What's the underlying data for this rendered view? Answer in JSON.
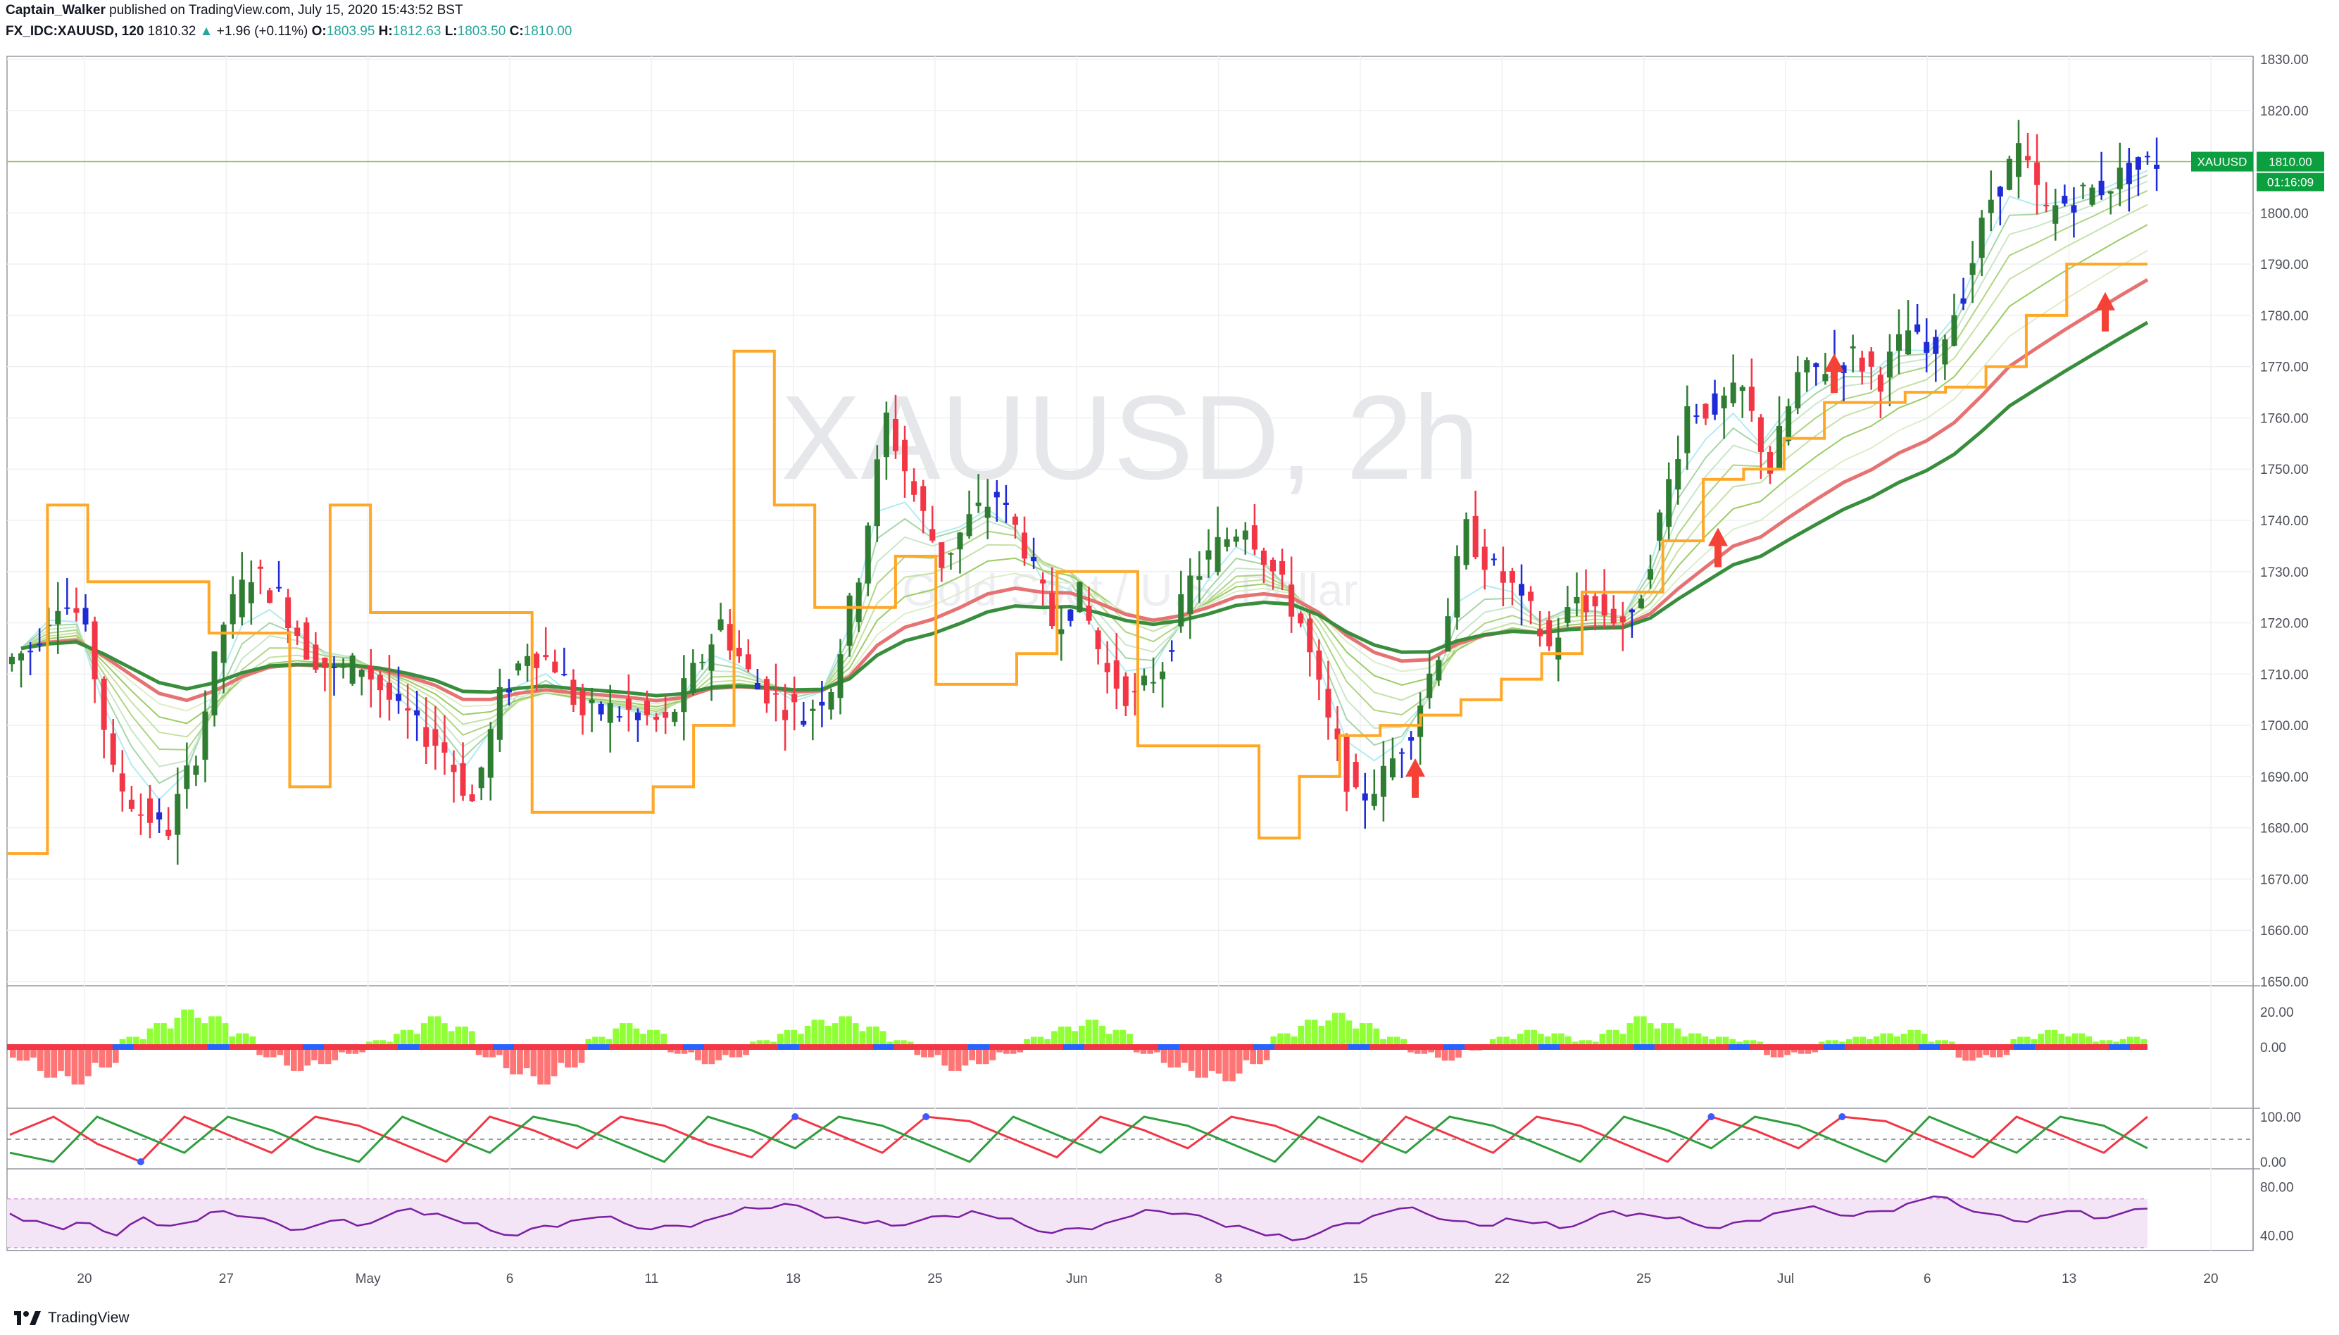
{
  "header": {
    "author": "Captain_Walker",
    "published_text": "published on TradingView.com, July 15, 2020 15:43:52 BST",
    "symbol_line": "FX_IDC:XAUUSD, 120",
    "last": "1810.32",
    "change": "+1.96 (+0.11%)",
    "open_label": "O:",
    "open": "1803.95",
    "high_label": "H:",
    "high": "1812.63",
    "low_label": "L:",
    "low": "1803.50",
    "close_label": "C:",
    "close": "1810.00"
  },
  "watermark": {
    "title": "XAUUSD, 2h",
    "subtitle": "Gold Spot / U.S. Dollar"
  },
  "price_tag": {
    "symbol": "XAUUSD",
    "price": "1810.00",
    "countdown": "01:16:09"
  },
  "footer": {
    "brand": "TradingView"
  },
  "colors": {
    "up": "#2e7d32",
    "down": "#f23645",
    "neutral_up": "#1f2bd6",
    "support": "#ffa726",
    "ribbon_fast": "#80deea",
    "ribbon_slow": "#4caf50",
    "rsi_band": "#f3e5f5",
    "rsi_line": "#7b1fa2",
    "accent": "#0c9f3f"
  },
  "chart_data": [
    {
      "type": "candlestick",
      "pane": "price",
      "ylim": [
        1650,
        1830
      ],
      "y_ticks": [
        "1830.00",
        "1820.00",
        "1810.00",
        "1800.00",
        "1790.00",
        "1780.00",
        "1770.00",
        "1760.00",
        "1750.00",
        "1740.00",
        "1730.00",
        "1720.00",
        "1710.00",
        "1700.00",
        "1690.00",
        "1680.00",
        "1670.00",
        "1660.00",
        "1650.00"
      ],
      "x_ticks": [
        "20",
        "27",
        "May",
        "6",
        "11",
        "18",
        "25",
        "Jun",
        "8",
        "15",
        "22",
        "25",
        "Jul",
        "6",
        "13",
        "20"
      ],
      "approx_closes": [
        1715,
        1725,
        1720,
        1690,
        1683,
        1680,
        1695,
        1720,
        1730,
        1725,
        1715,
        1710,
        1712,
        1705,
        1700,
        1695,
        1685,
        1705,
        1715,
        1712,
        1702,
        1703,
        1702,
        1700,
        1710,
        1720,
        1710,
        1705,
        1702,
        1708,
        1730,
        1760,
        1745,
        1732,
        1740,
        1745,
        1735,
        1720,
        1725,
        1710,
        1705,
        1712,
        1728,
        1735,
        1740,
        1730,
        1720,
        1700,
        1685,
        1690,
        1700,
        1715,
        1738,
        1730,
        1725,
        1715,
        1725,
        1722,
        1720,
        1740,
        1762,
        1762,
        1765,
        1750,
        1768,
        1770,
        1772,
        1768,
        1777,
        1773,
        1785,
        1803,
        1812,
        1800,
        1803,
        1805,
        1808,
        1810
      ],
      "support_line": [
        1675,
        1743,
        1728,
        1728,
        1728,
        1718,
        1718,
        1688,
        1743,
        1722,
        1722,
        1722,
        1722,
        1683,
        1683,
        1683,
        1688,
        1700,
        1773,
        1743,
        1723,
        1723,
        1733,
        1708,
        1708,
        1714,
        1730,
        1730,
        1696,
        1696,
        1696,
        1678,
        1690,
        1698,
        1700,
        1702,
        1705,
        1709,
        1714,
        1726,
        1726,
        1736,
        1748,
        1750,
        1756,
        1763,
        1763,
        1765,
        1766,
        1770,
        1780,
        1790,
        1790
      ],
      "annotations": [
        "arrow near 1700 (mid Jun)",
        "arrow at 1750 (late Jun)",
        "arrow at 1765 (Jul)",
        "arrow at 1790 (mid Jul)"
      ],
      "last_price": 1810.0
    },
    {
      "type": "histogram",
      "pane": "momentum",
      "y_ticks": [
        "20.00",
        "0.00"
      ],
      "values": [
        -8,
        -18,
        -22,
        -12,
        6,
        14,
        22,
        18,
        8,
        -6,
        -14,
        -10,
        -4,
        4,
        10,
        18,
        12,
        -6,
        -16,
        -22,
        -12,
        6,
        14,
        10,
        -4,
        -10,
        -6,
        4,
        10,
        16,
        18,
        12,
        4,
        -6,
        -14,
        -10,
        -4,
        6,
        12,
        16,
        10,
        -4,
        -12,
        -18,
        -20,
        -10,
        8,
        16,
        20,
        14,
        6,
        -4,
        -8,
        -2,
        6,
        10,
        8,
        4,
        10,
        18,
        14,
        8,
        6,
        4,
        -6,
        -4,
        4,
        6,
        8,
        10,
        4,
        -8,
        -6,
        6,
        10,
        8,
        4,
        6
      ]
    },
    {
      "type": "line",
      "pane": "sawtooth_oscillator",
      "y_ticks": [
        "100.00",
        "0.00"
      ],
      "series": [
        {
          "color": "#f23645",
          "values": [
            60,
            100,
            40,
            0,
            100,
            60,
            20,
            100,
            80,
            40,
            0,
            100,
            70,
            30,
            100,
            80,
            40,
            10,
            100,
            60,
            20,
            100,
            90,
            50,
            10,
            100,
            70,
            30,
            100,
            80,
            40,
            0,
            100,
            60,
            20,
            100,
            80,
            40,
            0,
            100,
            70,
            30,
            100,
            90,
            50,
            10,
            100,
            60,
            20,
            100
          ]
        },
        {
          "color": "#2e9e3f",
          "values": [
            20,
            0,
            100,
            60,
            20,
            100,
            70,
            30,
            0,
            100,
            60,
            20,
            100,
            80,
            40,
            0,
            100,
            70,
            30,
            100,
            80,
            40,
            0,
            100,
            60,
            20,
            100,
            80,
            40,
            0,
            100,
            60,
            20,
            100,
            80,
            40,
            0,
            100,
            70,
            30,
            100,
            80,
            40,
            0,
            100,
            60,
            20,
            100,
            80,
            30
          ]
        }
      ]
    },
    {
      "type": "line",
      "pane": "rsi",
      "y_ticks": [
        "80.00",
        "40.00"
      ],
      "band": [
        30,
        70
      ],
      "values": [
        58,
        52,
        45,
        50,
        40,
        55,
        48,
        52,
        60,
        55,
        50,
        45,
        52,
        48,
        55,
        62,
        58,
        50,
        44,
        40,
        48,
        52,
        55,
        50,
        45,
        48,
        52,
        58,
        62,
        66,
        60,
        55,
        50,
        48,
        52,
        56,
        60,
        54,
        48,
        42,
        46,
        50,
        56,
        60,
        58,
        52,
        48,
        40,
        36,
        42,
        50,
        56,
        62,
        58,
        52,
        48,
        54,
        50,
        46,
        52,
        60,
        58,
        54,
        50,
        46,
        52,
        58,
        62,
        60,
        56,
        60,
        66,
        72,
        64,
        58,
        52,
        56,
        60,
        54,
        58,
        62
      ]
    }
  ]
}
